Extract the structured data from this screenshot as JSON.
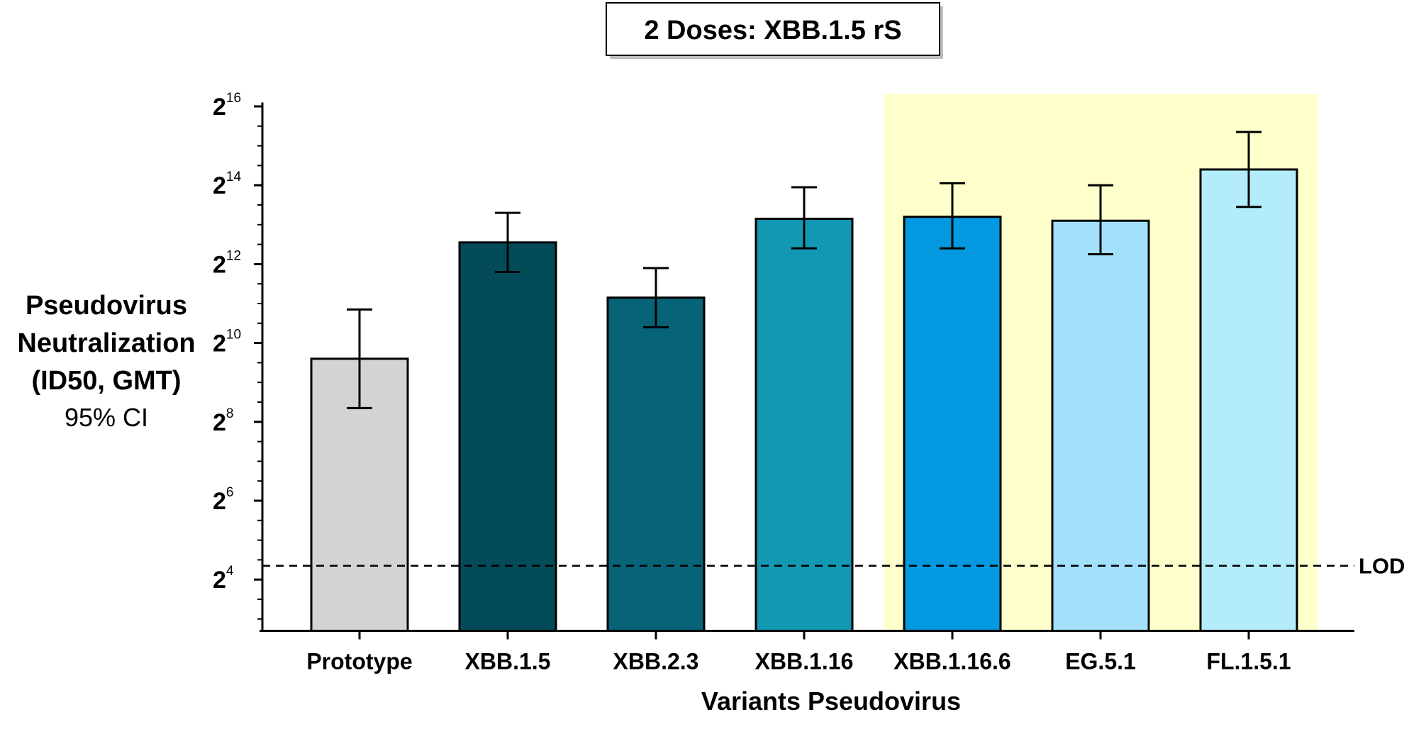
{
  "chart_data": {
    "type": "bar",
    "title": "2 Doses: XBB.1.5 rS",
    "ylabel_lines": [
      "Pseudovirus",
      "Neutralization",
      "(ID50, GMT)"
    ],
    "ylabel_sub": "95% CI",
    "xlabel": "Variants Pseudovirus",
    "y_scale": "log2",
    "ylim_exponent": [
      2.7,
      16.1
    ],
    "y_tick_exponents": [
      4,
      6,
      8,
      10,
      12,
      14,
      16
    ],
    "y_tick_base": "2",
    "y_tick_labels": [
      "4",
      "6",
      "8",
      "10",
      "12",
      "14",
      "16"
    ],
    "categories": [
      "Prototype",
      "XBB.1.5",
      "XBB.2.3",
      "XBB.1.16",
      "XBB.1.16.6",
      "EG.5.1",
      "FL.1.5.1"
    ],
    "values_log2": [
      9.6,
      12.55,
      11.15,
      13.15,
      13.2,
      13.1,
      14.4
    ],
    "ci_lower_log2": [
      8.35,
      11.8,
      10.4,
      12.4,
      12.4,
      12.25,
      13.45
    ],
    "ci_upper_log2": [
      10.85,
      13.3,
      11.9,
      13.95,
      14.05,
      14.0,
      15.35
    ],
    "colors": [
      "#d3d3d3",
      "#044b59",
      "#076377",
      "#1398b4",
      "#0399e0",
      "#a2e0fc",
      "#b3ecfa"
    ],
    "lod_log2": 4.35,
    "lod_label": "LOD",
    "highlight": {
      "from_category": "XBB.1.16.6",
      "to_category": "FL.1.5.1",
      "color": "#ffffcc"
    },
    "grid": false,
    "legend": "none"
  }
}
